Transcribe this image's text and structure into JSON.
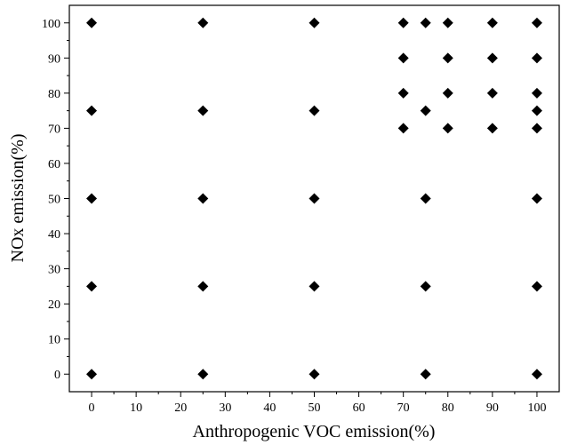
{
  "chart_data": {
    "type": "scatter",
    "title": "",
    "xlabel": "Anthropogenic VOC emission(%)",
    "ylabel": "NOx emission(%)",
    "xlim": [
      -5,
      105
    ],
    "ylim": [
      -5,
      105
    ],
    "xticks": [
      0,
      10,
      20,
      30,
      40,
      50,
      60,
      70,
      80,
      90,
      100
    ],
    "yticks": [
      0,
      10,
      20,
      30,
      40,
      50,
      60,
      70,
      80,
      90,
      100
    ],
    "marker": "diamond",
    "marker_color": "#000000",
    "grid": false,
    "series": [
      {
        "points": [
          [
            0,
            0
          ],
          [
            0,
            25
          ],
          [
            0,
            50
          ],
          [
            0,
            75
          ],
          [
            0,
            100
          ],
          [
            25,
            0
          ],
          [
            25,
            25
          ],
          [
            25,
            50
          ],
          [
            25,
            75
          ],
          [
            25,
            100
          ],
          [
            50,
            0
          ],
          [
            50,
            25
          ],
          [
            50,
            50
          ],
          [
            50,
            75
          ],
          [
            50,
            100
          ],
          [
            70,
            70
          ],
          [
            70,
            80
          ],
          [
            70,
            90
          ],
          [
            70,
            100
          ],
          [
            75,
            0
          ],
          [
            75,
            25
          ],
          [
            75,
            50
          ],
          [
            75,
            75
          ],
          [
            75,
            100
          ],
          [
            80,
            70
          ],
          [
            80,
            80
          ],
          [
            80,
            90
          ],
          [
            80,
            100
          ],
          [
            90,
            70
          ],
          [
            90,
            80
          ],
          [
            90,
            90
          ],
          [
            90,
            100
          ],
          [
            100,
            0
          ],
          [
            100,
            25
          ],
          [
            100,
            50
          ],
          [
            100,
            70
          ],
          [
            100,
            75
          ],
          [
            100,
            80
          ],
          [
            100,
            90
          ],
          [
            100,
            100
          ]
        ]
      }
    ]
  }
}
